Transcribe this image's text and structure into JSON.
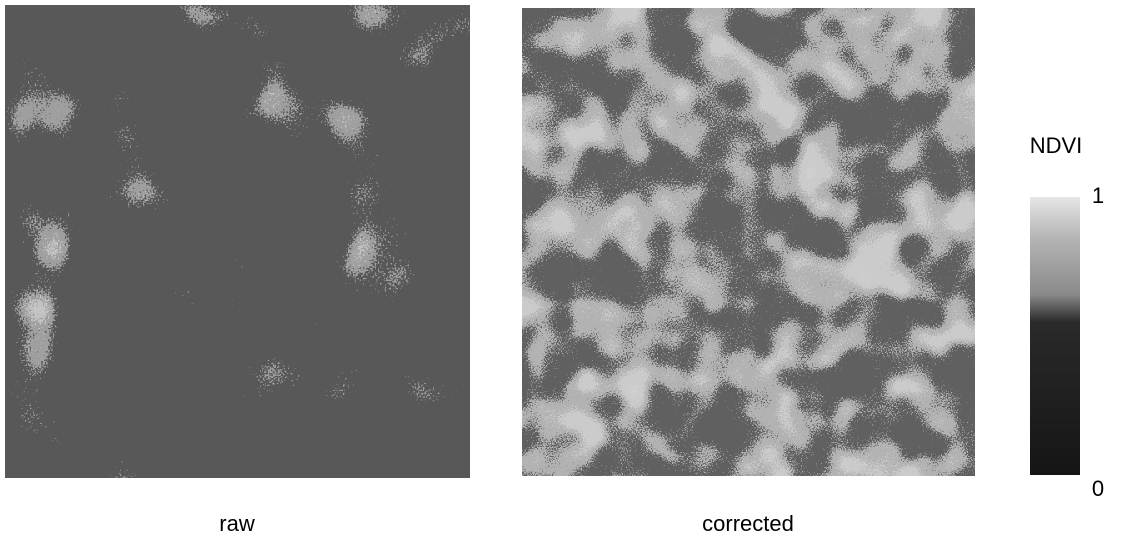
{
  "panels": [
    {
      "label": "raw"
    },
    {
      "label": "corrected"
    }
  ],
  "colorbar": {
    "label": "NDVI",
    "lim": [
      0,
      1
    ],
    "ticks": [
      0,
      1
    ]
  }
}
